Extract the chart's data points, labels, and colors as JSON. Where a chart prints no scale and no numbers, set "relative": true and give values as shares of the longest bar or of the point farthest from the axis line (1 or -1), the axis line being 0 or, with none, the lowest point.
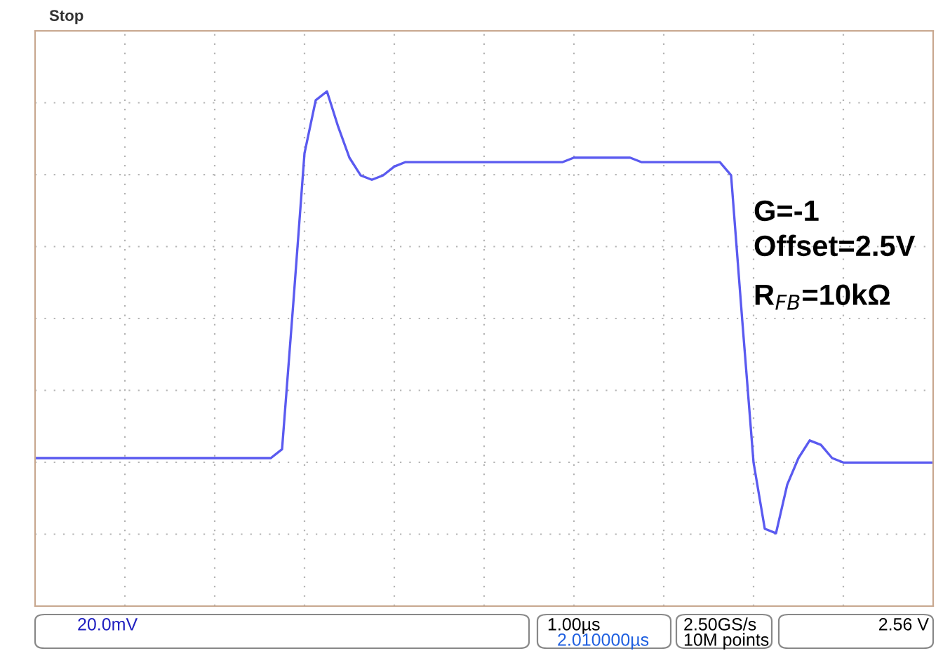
{
  "chart_data": {
    "type": "line",
    "relative": true,
    "grid": true,
    "color": "#5a5af0",
    "categories": [
      null,
      null,
      null,
      null,
      null,
      null,
      null,
      null,
      null,
      null,
      null,
      null,
      null,
      null,
      null,
      null,
      null,
      null,
      null,
      null,
      null,
      null,
      null,
      null,
      null,
      null,
      null,
      null,
      null,
      null,
      null,
      null,
      null,
      null,
      null,
      null,
      null,
      null,
      null,
      null,
      null,
      null,
      null,
      null,
      null,
      null,
      null,
      null,
      null,
      null,
      null,
      null,
      null,
      null,
      null,
      null,
      null,
      null,
      null,
      null,
      null,
      null,
      null,
      null,
      null,
      null,
      null,
      null,
      null,
      null,
      null,
      null,
      null,
      null,
      null,
      null,
      null,
      null,
      null,
      null,
      null
    ],
    "values": [
      0.17,
      0.17,
      0.17,
      0.17,
      0.17,
      0.17,
      0.17,
      0.17,
      0.17,
      0.17,
      0.17,
      0.17,
      0.17,
      0.17,
      0.17,
      0.17,
      0.17,
      0.17,
      0.17,
      0.17,
      0.17,
      0.17,
      0.19,
      0.52,
      0.86,
      0.98,
      1.0,
      0.92,
      0.85,
      0.81,
      0.8,
      0.81,
      0.83,
      0.84,
      0.84,
      0.84,
      0.84,
      0.84,
      0.84,
      0.84,
      0.84,
      0.84,
      0.84,
      0.84,
      0.84,
      0.84,
      0.84,
      0.84,
      0.85,
      0.85,
      0.85,
      0.85,
      0.85,
      0.85,
      0.84,
      0.84,
      0.84,
      0.84,
      0.84,
      0.84,
      0.84,
      0.84,
      0.81,
      0.48,
      0.16,
      0.01,
      0.0,
      0.11,
      0.17,
      0.21,
      0.2,
      0.17,
      0.16,
      0.16,
      0.16,
      0.16,
      0.16,
      0.16,
      0.16,
      0.16,
      0.16
    ],
    "annotations": [
      "Stop",
      "G=-1",
      "Offset=2.5V",
      "R$_{FB}$=10kΩ",
      "20.0mV",
      "1.00µs",
      "2.010000µs",
      "2.50GS/s",
      "10M points",
      "2.56 V"
    ]
  }
}
